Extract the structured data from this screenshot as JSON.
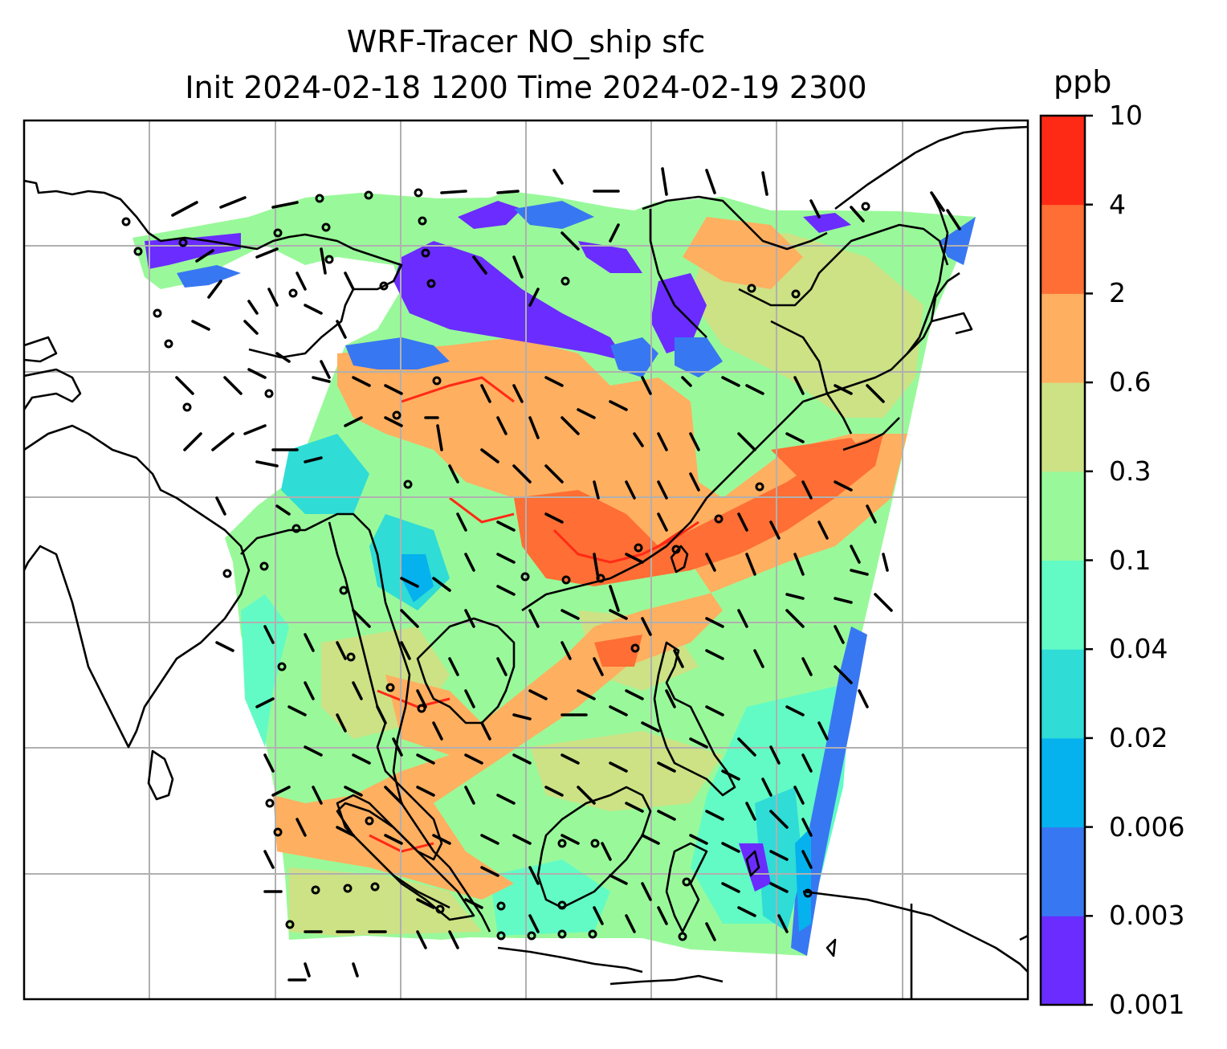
{
  "title": {
    "line1": "WRF-Tracer NO_ship sfc",
    "line2": "Init 2024-02-18 1200 Time 2024-02-19 2300"
  },
  "colorbar": {
    "unit": "ppb",
    "levels": [
      "0.001",
      "0.003",
      "0.006",
      "0.02",
      "0.04",
      "0.1",
      "0.3",
      "0.6",
      "2",
      "4",
      "10"
    ],
    "colors": [
      "#6a2cff",
      "#3877f2",
      "#05b2ee",
      "#2fdcd6",
      "#62fbc5",
      "#99f99a",
      "#cde285",
      "#ffaf60",
      "#ff6e34",
      "#ff2a16"
    ]
  },
  "map": {
    "background": "#ffffff",
    "gridline_color": "#b0b0b0",
    "coastline_color": "#000000"
  }
}
